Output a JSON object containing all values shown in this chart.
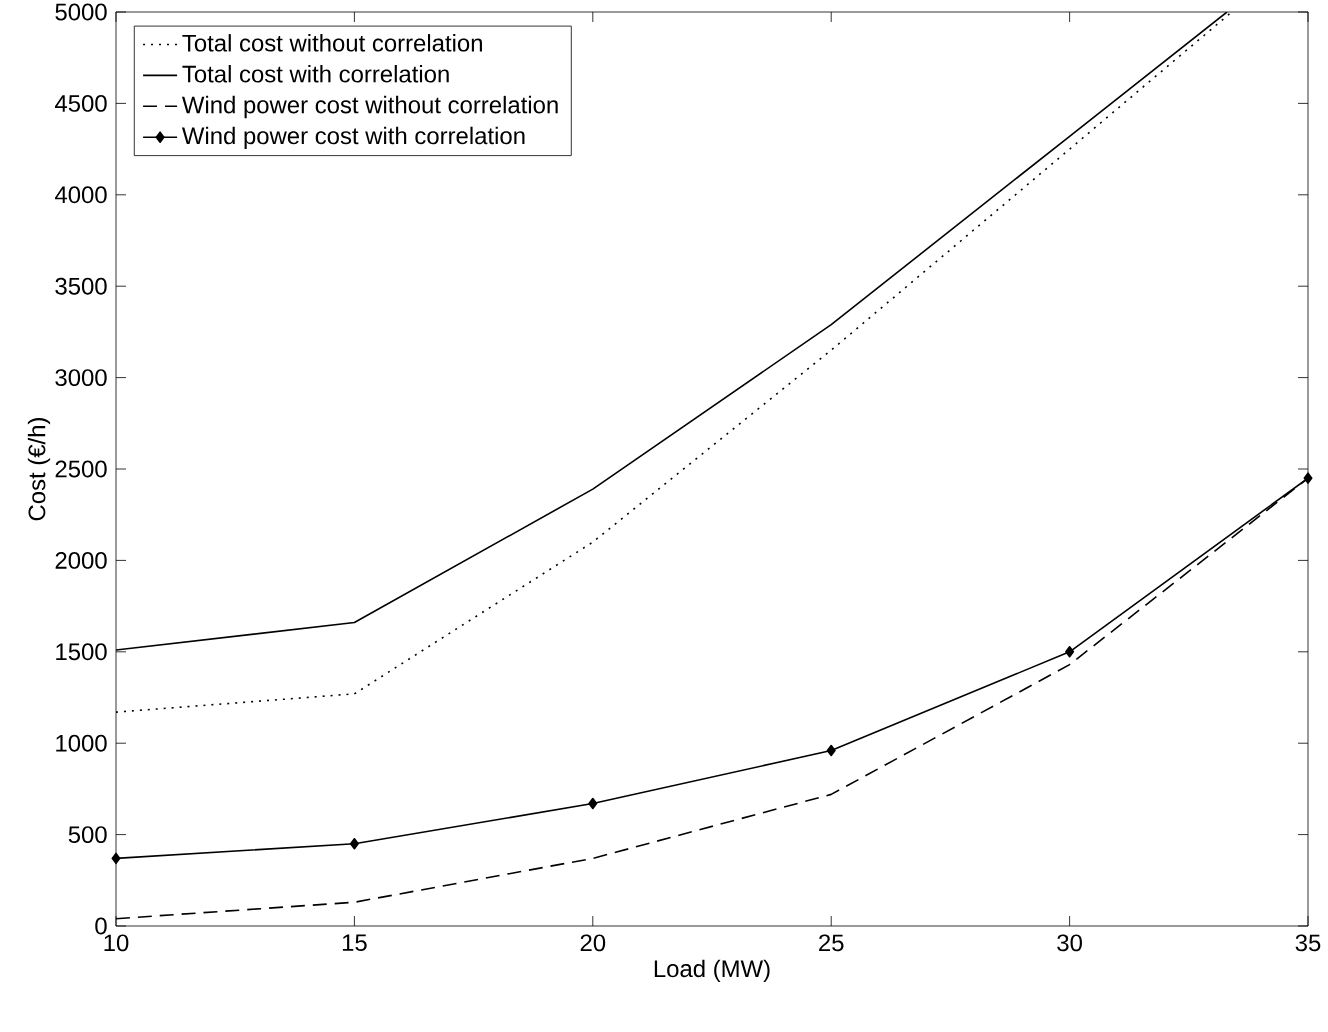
{
  "chart_data": {
    "type": "line",
    "xlabel": "Load (MW)",
    "ylabel": "Cost (€/h)",
    "xlim": [
      10,
      35
    ],
    "ylim": [
      0,
      5000
    ],
    "xticks": [
      10,
      15,
      20,
      25,
      30,
      35
    ],
    "yticks": [
      0,
      500,
      1000,
      1500,
      2000,
      2500,
      3000,
      3500,
      4000,
      4500,
      5000
    ],
    "grid": false,
    "legend": "top left",
    "series": [
      {
        "name": "Total cost without correlation",
        "color": "#000000",
        "line_style": "dotted",
        "marker": "none",
        "x": [
          10,
          15,
          20,
          25,
          30,
          33.4
        ],
        "values": [
          1170,
          1270,
          2100,
          3150,
          4250,
          5000
        ]
      },
      {
        "name": "Total cost with correlation",
        "color": "#000000",
        "line_style": "solid",
        "marker": "none",
        "x": [
          10,
          15,
          20,
          25,
          30,
          33.3
        ],
        "values": [
          1510,
          1660,
          2390,
          3290,
          4320,
          5000
        ]
      },
      {
        "name": "Wind power cost without correlation",
        "color": "#000000",
        "line_style": "dashed",
        "marker": "none",
        "x": [
          10,
          15,
          20,
          25,
          30,
          35
        ],
        "values": [
          40,
          130,
          370,
          720,
          1430,
          2450
        ]
      },
      {
        "name": "Wind power cost with correlation",
        "color": "#000000",
        "line_style": "solid",
        "marker": "diamond",
        "x": [
          10,
          15,
          20,
          25,
          30,
          35
        ],
        "values": [
          370,
          450,
          670,
          960,
          1500,
          2450
        ]
      }
    ]
  }
}
